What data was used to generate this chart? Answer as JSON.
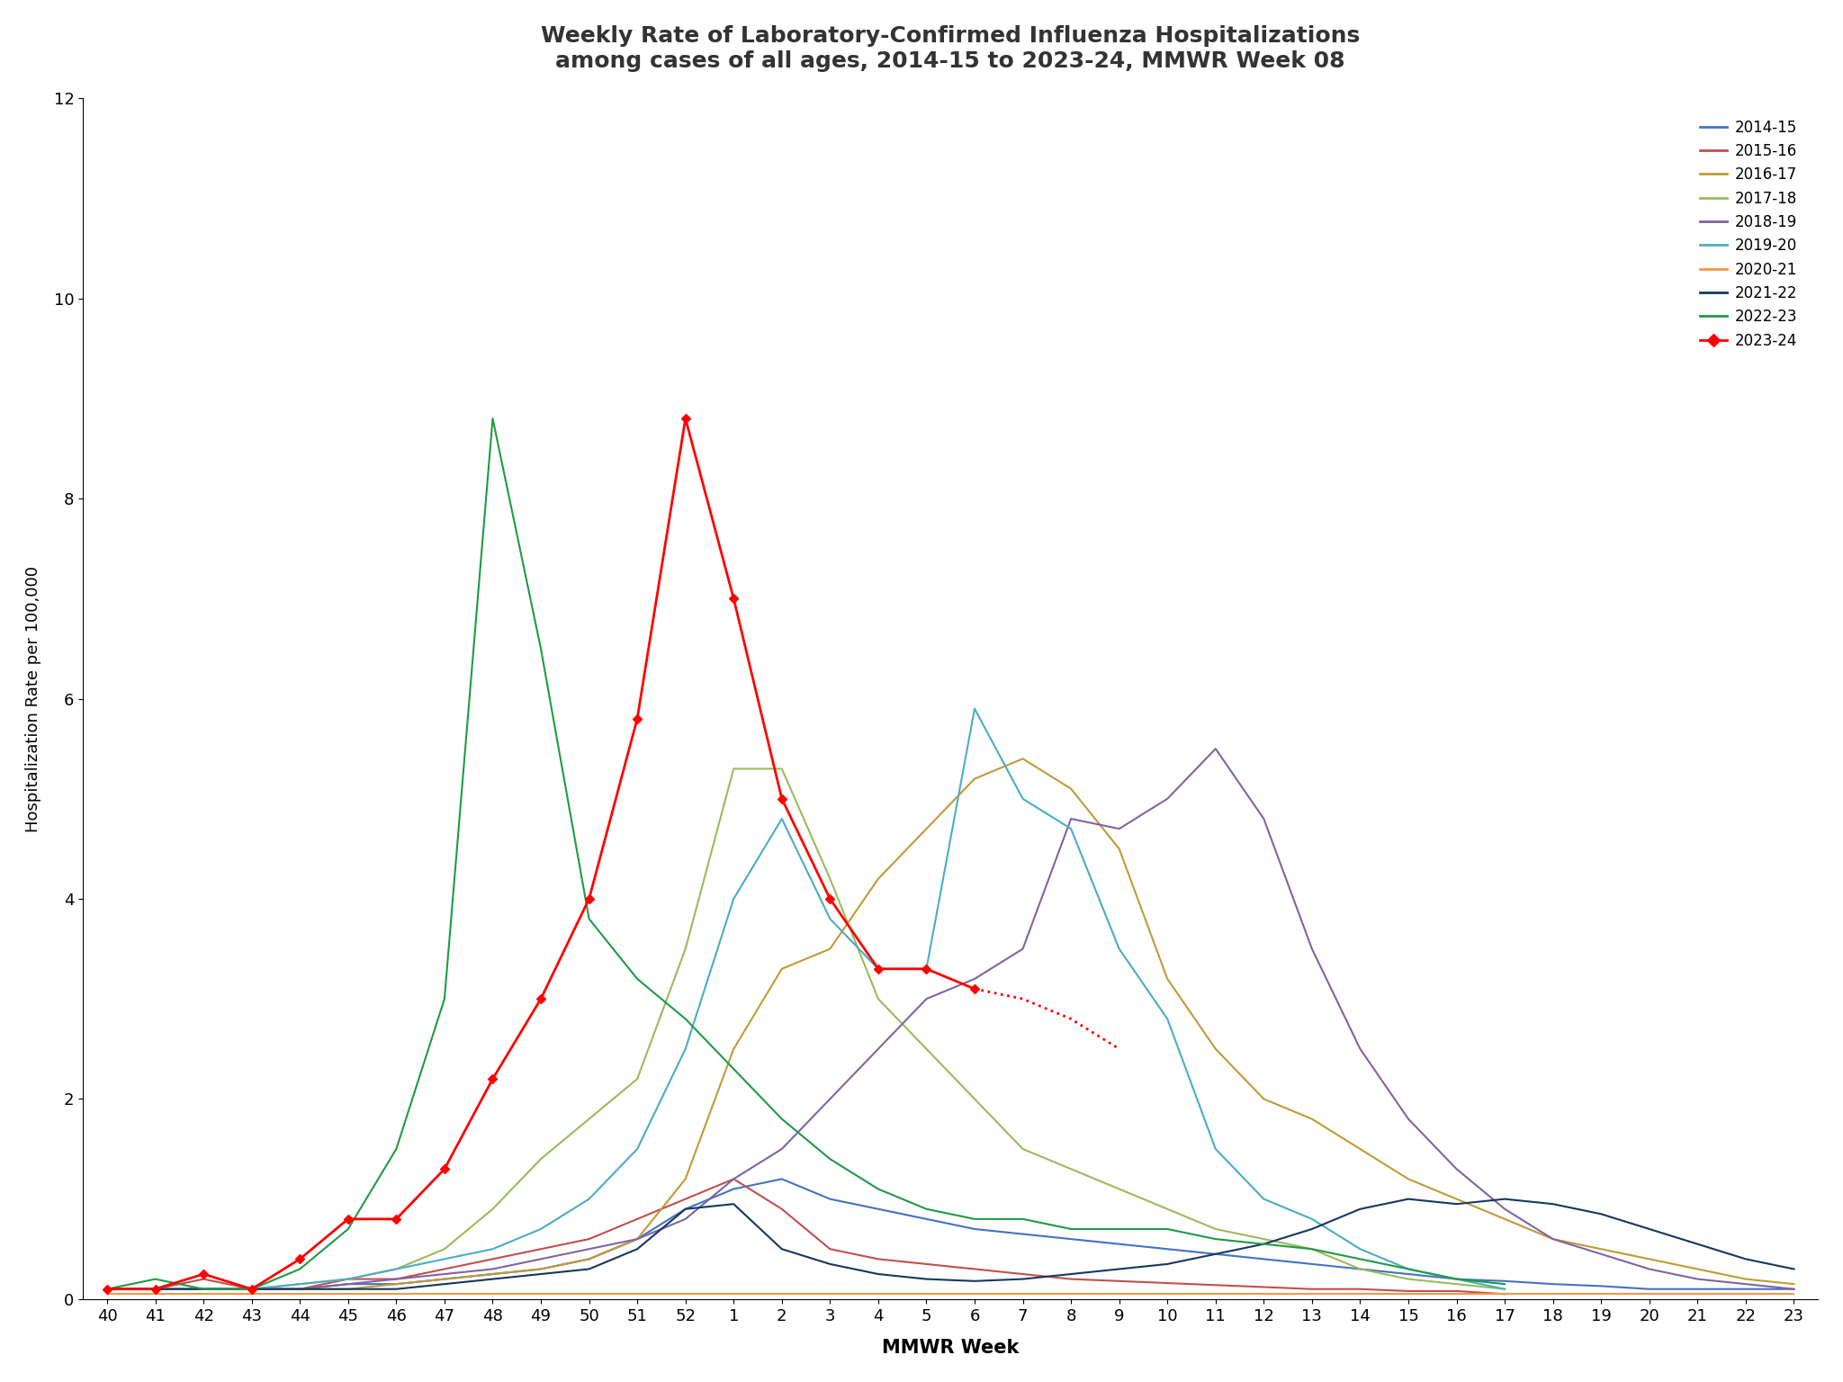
{
  "title": "Weekly Rate of Laboratory-Confirmed Influenza Hospitalizations\namong cases of all ages, 2014-15 to 2023-24, MMWR Week 08",
  "xlabel": "MMWR Week",
  "ylabel": "Hospitalization Rate per 100,000",
  "week_labels": [
    "40",
    "41",
    "42",
    "43",
    "44",
    "45",
    "46",
    "47",
    "48",
    "49",
    "50",
    "51",
    "52",
    "1",
    "2",
    "3",
    "4",
    "5",
    "6",
    "7",
    "8",
    "9",
    "10",
    "11",
    "12",
    "13",
    "14",
    "15",
    "16",
    "17",
    "18",
    "19",
    "20",
    "21",
    "22",
    "23"
  ],
  "ylim": [
    0,
    12
  ],
  "yticks": [
    0,
    2,
    4,
    6,
    8,
    10,
    12
  ],
  "seasons": [
    {
      "name": "2014-15",
      "color": "#4472C4",
      "linewidth": 1.5,
      "weeks": [
        "40",
        "41",
        "42",
        "43",
        "44",
        "45",
        "46",
        "47",
        "48",
        "49",
        "50",
        "51",
        "52",
        "1",
        "2",
        "3",
        "4",
        "5",
        "6",
        "7",
        "8",
        "9",
        "10",
        "11",
        "12",
        "13",
        "14",
        "15",
        "16",
        "17",
        "18",
        "19",
        "20",
        "21",
        "22",
        "23"
      ],
      "values": [
        0.1,
        0.1,
        0.1,
        0.1,
        0.1,
        0.15,
        0.15,
        0.2,
        0.25,
        0.3,
        0.4,
        0.6,
        0.9,
        1.1,
        1.2,
        1.0,
        0.9,
        0.8,
        0.7,
        0.65,
        0.6,
        0.55,
        0.5,
        0.45,
        0.4,
        0.35,
        0.3,
        0.25,
        0.2,
        0.18,
        0.15,
        0.13,
        0.1,
        0.1,
        0.1,
        0.1
      ]
    },
    {
      "name": "2015-16",
      "color": "#C0504D",
      "linewidth": 1.5,
      "weeks": [
        "40",
        "41",
        "42",
        "43",
        "44",
        "45",
        "46",
        "47",
        "48",
        "49",
        "50",
        "51",
        "52",
        "1",
        "2",
        "3",
        "4",
        "5",
        "6",
        "7",
        "8",
        "9",
        "10",
        "11",
        "12",
        "13",
        "14",
        "15",
        "16",
        "17"
      ],
      "values": [
        0.1,
        0.1,
        0.2,
        0.1,
        0.1,
        0.2,
        0.2,
        0.3,
        0.4,
        0.5,
        0.6,
        0.8,
        1.0,
        1.2,
        0.9,
        0.5,
        0.4,
        0.35,
        0.3,
        0.25,
        0.2,
        0.18,
        0.16,
        0.14,
        0.12,
        0.1,
        0.1,
        0.08,
        0.08,
        0.05
      ]
    },
    {
      "name": "2016-17",
      "color": "#C09B35",
      "linewidth": 1.5,
      "weeks": [
        "40",
        "41",
        "42",
        "43",
        "44",
        "45",
        "46",
        "47",
        "48",
        "49",
        "50",
        "51",
        "52",
        "1",
        "2",
        "3",
        "4",
        "5",
        "6",
        "7",
        "8",
        "9",
        "10",
        "11",
        "12",
        "13",
        "14",
        "15",
        "16",
        "17",
        "18",
        "19",
        "20",
        "21",
        "22",
        "23"
      ],
      "values": [
        0.1,
        0.1,
        0.1,
        0.1,
        0.1,
        0.1,
        0.15,
        0.2,
        0.25,
        0.3,
        0.4,
        0.6,
        1.2,
        2.5,
        3.3,
        3.5,
        4.2,
        4.7,
        5.2,
        5.4,
        5.1,
        4.5,
        3.2,
        2.5,
        2.0,
        1.8,
        1.5,
        1.2,
        1.0,
        0.8,
        0.6,
        0.5,
        0.4,
        0.3,
        0.2,
        0.15
      ]
    },
    {
      "name": "2017-18",
      "color": "#9BBB59",
      "linewidth": 1.5,
      "weeks": [
        "40",
        "41",
        "42",
        "43",
        "44",
        "45",
        "46",
        "47",
        "48",
        "49",
        "50",
        "51",
        "52",
        "1",
        "2",
        "3",
        "4",
        "5",
        "6",
        "7",
        "8",
        "9",
        "10",
        "11",
        "12",
        "13",
        "14",
        "15",
        "16",
        "17"
      ],
      "values": [
        0.1,
        0.1,
        0.1,
        0.1,
        0.15,
        0.2,
        0.3,
        0.5,
        0.9,
        1.4,
        1.8,
        2.2,
        3.5,
        5.3,
        5.3,
        4.2,
        3.0,
        2.5,
        2.0,
        1.5,
        1.3,
        1.1,
        0.9,
        0.7,
        0.6,
        0.5,
        0.3,
        0.2,
        0.15,
        0.1
      ]
    },
    {
      "name": "2018-19",
      "color": "#8064A2",
      "linewidth": 1.5,
      "weeks": [
        "40",
        "41",
        "42",
        "43",
        "44",
        "45",
        "46",
        "47",
        "48",
        "49",
        "50",
        "51",
        "52",
        "1",
        "2",
        "3",
        "4",
        "5",
        "6",
        "7",
        "8",
        "9",
        "10",
        "11",
        "12",
        "13",
        "14",
        "15",
        "16",
        "17",
        "18",
        "19",
        "20",
        "21",
        "22",
        "23"
      ],
      "values": [
        0.1,
        0.1,
        0.1,
        0.1,
        0.1,
        0.15,
        0.2,
        0.25,
        0.3,
        0.4,
        0.5,
        0.6,
        0.8,
        1.2,
        1.5,
        2.0,
        2.5,
        3.0,
        3.2,
        3.5,
        4.8,
        4.7,
        5.0,
        5.5,
        4.8,
        3.5,
        2.5,
        1.8,
        1.3,
        0.9,
        0.6,
        0.45,
        0.3,
        0.2,
        0.15,
        0.1
      ]
    },
    {
      "name": "2019-20",
      "color": "#4BACC6",
      "linewidth": 1.5,
      "weeks": [
        "40",
        "41",
        "42",
        "43",
        "44",
        "45",
        "46",
        "47",
        "48",
        "49",
        "50",
        "51",
        "52",
        "1",
        "2",
        "3",
        "4",
        "5",
        "6",
        "7",
        "8",
        "9",
        "10",
        "11",
        "12",
        "13",
        "14",
        "15",
        "16",
        "17"
      ],
      "values": [
        0.1,
        0.1,
        0.1,
        0.1,
        0.15,
        0.2,
        0.3,
        0.4,
        0.5,
        0.7,
        1.0,
        1.5,
        2.5,
        4.0,
        4.8,
        3.8,
        3.3,
        3.3,
        5.9,
        5.0,
        4.7,
        3.5,
        2.8,
        1.5,
        1.0,
        0.8,
        0.5,
        0.3,
        0.2,
        0.1
      ]
    },
    {
      "name": "2020-21",
      "color": "#F79646",
      "linewidth": 1.5,
      "weeks": [
        "40",
        "41",
        "42",
        "43",
        "44",
        "45",
        "46",
        "47",
        "48",
        "49",
        "50",
        "51",
        "52",
        "1",
        "2",
        "3",
        "4",
        "5",
        "6",
        "7",
        "8",
        "9",
        "10",
        "11",
        "12",
        "13",
        "14",
        "15",
        "16",
        "17",
        "18",
        "19",
        "20",
        "21",
        "22",
        "23"
      ],
      "values": [
        0.05,
        0.05,
        0.05,
        0.05,
        0.05,
        0.05,
        0.05,
        0.05,
        0.05,
        0.05,
        0.05,
        0.05,
        0.05,
        0.05,
        0.05,
        0.05,
        0.05,
        0.05,
        0.05,
        0.05,
        0.05,
        0.05,
        0.05,
        0.05,
        0.05,
        0.05,
        0.05,
        0.05,
        0.05,
        0.05,
        0.05,
        0.05,
        0.05,
        0.05,
        0.05,
        0.05
      ]
    },
    {
      "name": "2021-22",
      "color": "#17375E",
      "linewidth": 1.5,
      "weeks": [
        "40",
        "41",
        "42",
        "43",
        "44",
        "45",
        "46",
        "47",
        "48",
        "49",
        "50",
        "51",
        "52",
        "1",
        "2",
        "3",
        "4",
        "5",
        "6",
        "7",
        "8",
        "9",
        "10",
        "11",
        "12",
        "13",
        "14",
        "15",
        "16",
        "17",
        "18",
        "19",
        "20",
        "21",
        "22",
        "23"
      ],
      "values": [
        0.1,
        0.1,
        0.1,
        0.1,
        0.1,
        0.1,
        0.1,
        0.15,
        0.2,
        0.25,
        0.3,
        0.5,
        0.9,
        0.95,
        0.5,
        0.35,
        0.25,
        0.2,
        0.18,
        0.2,
        0.25,
        0.3,
        0.35,
        0.45,
        0.55,
        0.7,
        0.9,
        1.0,
        0.95,
        1.0,
        0.95,
        0.85,
        0.7,
        0.55,
        0.4,
        0.3
      ]
    },
    {
      "name": "2022-23",
      "color": "#1F9B45",
      "linewidth": 1.5,
      "weeks": [
        "40",
        "41",
        "42",
        "43",
        "44",
        "45",
        "46",
        "47",
        "48",
        "49",
        "50",
        "51",
        "52",
        "1",
        "2",
        "3",
        "4",
        "5",
        "6",
        "7",
        "8",
        "9",
        "10",
        "11",
        "12",
        "13",
        "14",
        "15",
        "16",
        "17"
      ],
      "values": [
        0.1,
        0.2,
        0.1,
        0.1,
        0.3,
        0.7,
        1.5,
        3.0,
        8.8,
        6.5,
        3.8,
        3.2,
        2.8,
        2.3,
        1.8,
        1.4,
        1.1,
        0.9,
        0.8,
        0.8,
        0.7,
        0.7,
        0.7,
        0.6,
        0.55,
        0.5,
        0.4,
        0.3,
        0.2,
        0.15
      ]
    },
    {
      "name": "2023-24",
      "color": "#FF0000",
      "linewidth": 2.0,
      "marker": "D",
      "markersize": 5,
      "solid_weeks": [
        "40",
        "41",
        "42",
        "43",
        "44",
        "45",
        "46",
        "47",
        "48",
        "49",
        "50",
        "51",
        "52",
        "1",
        "2",
        "3",
        "4",
        "5",
        "6"
      ],
      "solid_values": [
        0.1,
        0.1,
        0.25,
        0.1,
        0.4,
        0.8,
        0.8,
        1.3,
        2.2,
        3.0,
        4.0,
        5.8,
        8.8,
        7.0,
        5.0,
        4.0,
        3.3,
        3.3,
        3.1
      ],
      "dotted_weeks": [
        "6",
        "7",
        "8",
        "9"
      ],
      "dotted_values": [
        3.1,
        3.0,
        2.8,
        2.5
      ]
    }
  ]
}
